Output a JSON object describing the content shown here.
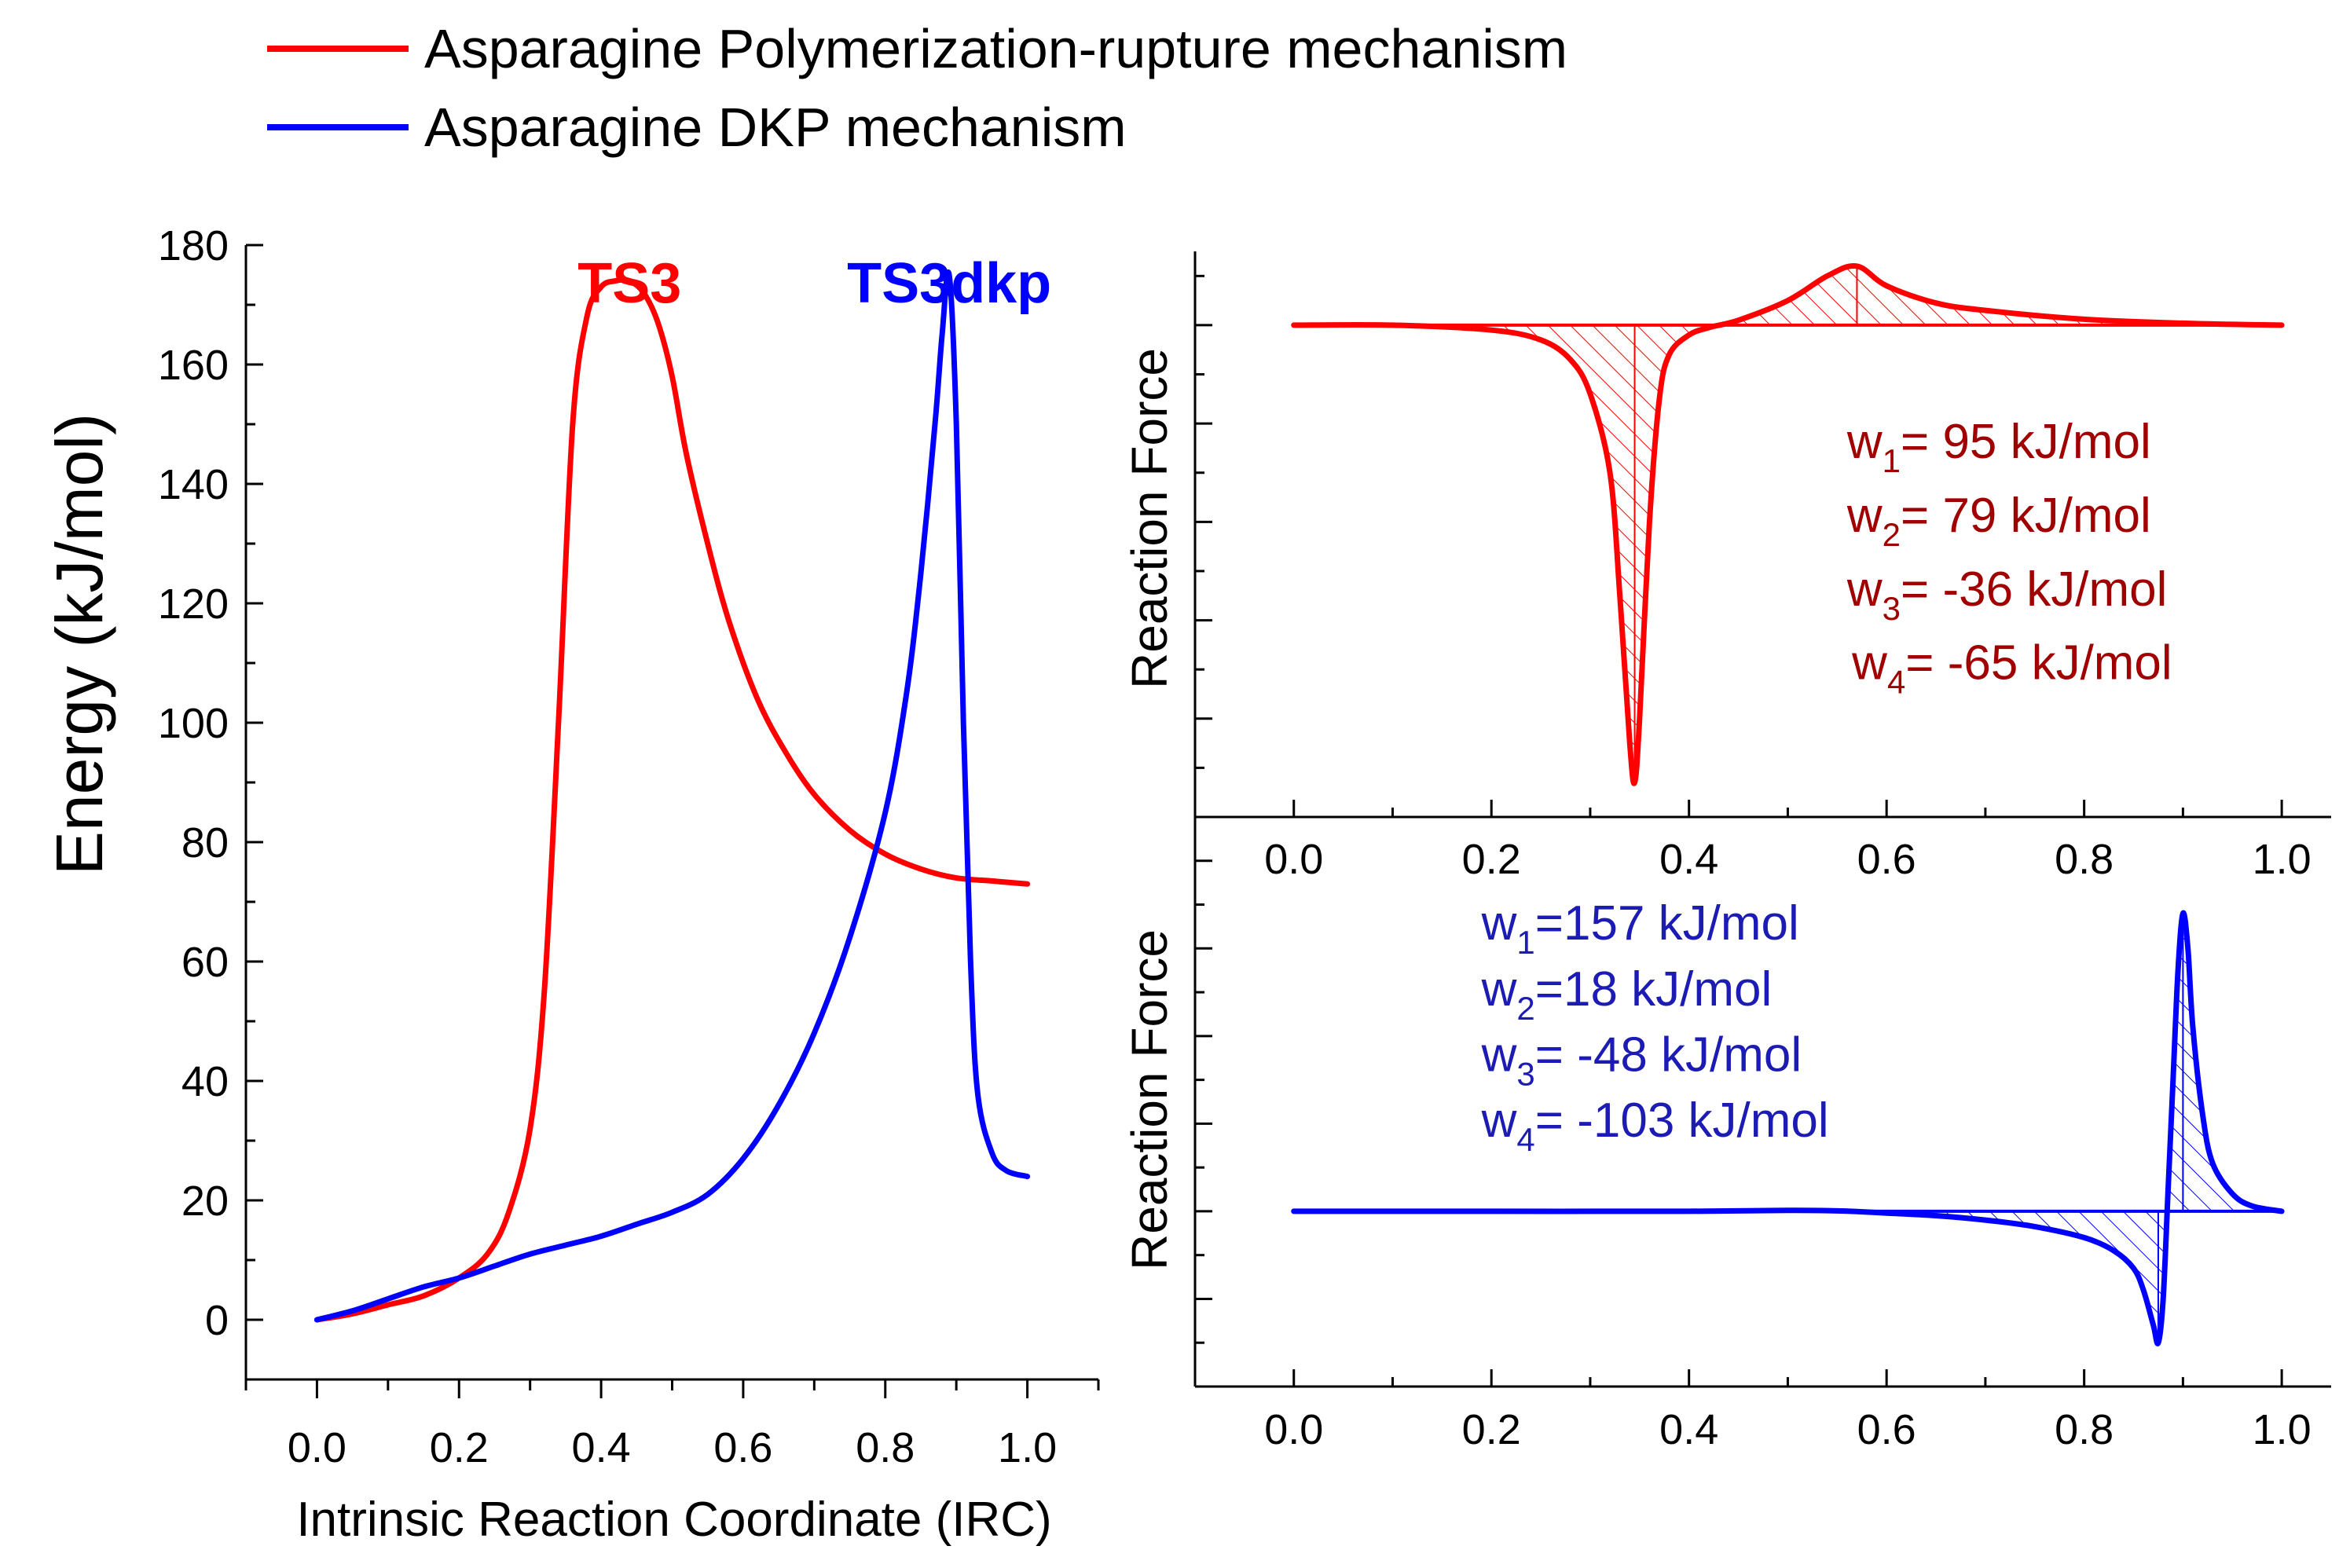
{
  "legend": {
    "placement": "top-left",
    "entries": [
      {
        "label": "Asparagine Polymerization-rupture mechanism",
        "color": "#ff0000"
      },
      {
        "label": "Asparagine DKP mechanism",
        "color": "#0000ff"
      }
    ]
  },
  "colors": {
    "red": "#ff0000",
    "blue": "#0000ff",
    "dark_red": "#a00000",
    "dark_blue": "#1c1cb4"
  },
  "chart_data": [
    {
      "id": "energy",
      "type": "line",
      "xlabel": "Intrinsic Reaction Coordinate (IRC)",
      "ylabel": "Energy (kJ/mol)",
      "xlim": [
        -0.1,
        1.1
      ],
      "ylim": [
        -10,
        180
      ],
      "xticks": [
        "0.0",
        "0.2",
        "0.4",
        "0.6",
        "0.8",
        "1.0"
      ],
      "yticks": [
        "0",
        "20",
        "40",
        "60",
        "80",
        "100",
        "120",
        "140",
        "160",
        "180"
      ],
      "annotations": [
        {
          "text": "TS3",
          "x": 0.44,
          "y": 177,
          "color": "#ff0000"
        },
        {
          "text": "TS3dkp",
          "x": 0.89,
          "y": 177,
          "color": "#0000ff"
        }
      ],
      "series": [
        {
          "name": "Asparagine Polymerization-rupture mechanism",
          "color": "#ff0000",
          "x": [
            0.0,
            0.05,
            0.1,
            0.15,
            0.2,
            0.24,
            0.27,
            0.3,
            0.32,
            0.34,
            0.36,
            0.38,
            0.4,
            0.42,
            0.44,
            0.46,
            0.48,
            0.5,
            0.52,
            0.55,
            0.58,
            0.62,
            0.66,
            0.7,
            0.75,
            0.8,
            0.85,
            0.9,
            0.95,
            1.0
          ],
          "y": [
            0,
            1,
            2.5,
            4,
            7,
            11,
            18,
            32,
            55,
            100,
            150,
            168,
            173,
            174,
            174,
            172,
            167,
            158,
            145,
            130,
            117,
            104,
            95,
            88,
            82,
            78,
            75.5,
            74,
            73.5,
            73
          ]
        },
        {
          "name": "Asparagine DKP mechanism",
          "color": "#0000ff",
          "x": [
            0.0,
            0.05,
            0.1,
            0.15,
            0.2,
            0.25,
            0.3,
            0.35,
            0.4,
            0.45,
            0.5,
            0.55,
            0.6,
            0.65,
            0.7,
            0.75,
            0.8,
            0.83,
            0.85,
            0.87,
            0.88,
            0.89,
            0.9,
            0.91,
            0.92,
            0.93,
            0.95,
            0.97,
            1.0
          ],
          "y": [
            0,
            1.5,
            3.5,
            5.5,
            7,
            9,
            11,
            12.5,
            14,
            16,
            18,
            21,
            27,
            36,
            48,
            64,
            85,
            105,
            125,
            150,
            165,
            175,
            150,
            100,
            60,
            38,
            28,
            25,
            24
          ]
        }
      ]
    },
    {
      "id": "force-red",
      "type": "area",
      "xlabel": "",
      "ylabel": "Reaction Force",
      "xlim": [
        -0.1,
        1.05
      ],
      "ylim": [
        -1.0,
        0.15
      ],
      "xticks": [
        "0.0",
        "0.2",
        "0.4",
        "0.6",
        "0.8",
        "1.0"
      ],
      "annotations": [
        {
          "text": "w",
          "sub": "1",
          "rest": "= 95 kJ/mol",
          "x": 0.56,
          "y": -0.27,
          "color": "#a00000"
        },
        {
          "text": "w",
          "sub": "2",
          "rest": "= 79 kJ/mol",
          "x": 0.56,
          "y": -0.42,
          "color": "#a00000"
        },
        {
          "text": "w",
          "sub": "3",
          "rest": "= -36 kJ/mol",
          "x": 0.56,
          "y": -0.57,
          "color": "#a00000"
        },
        {
          "text": "w",
          "sub": "4",
          "rest": "= -65 kJ/mol",
          "x": 0.565,
          "y": -0.72,
          "color": "#a00000"
        }
      ],
      "series": [
        {
          "color": "#ff0000",
          "x": [
            0.0,
            0.1,
            0.2,
            0.25,
            0.28,
            0.3,
            0.32,
            0.33,
            0.34,
            0.345,
            0.35,
            0.36,
            0.37,
            0.38,
            0.4,
            0.42,
            0.45,
            0.5,
            0.54,
            0.57,
            0.6,
            0.65,
            0.7,
            0.8,
            0.9,
            1.0
          ],
          "y": [
            0,
            0,
            -0.01,
            -0.03,
            -0.07,
            -0.14,
            -0.3,
            -0.55,
            -0.85,
            -0.93,
            -0.8,
            -0.4,
            -0.15,
            -0.06,
            -0.02,
            -0.005,
            0.01,
            0.05,
            0.1,
            0.12,
            0.08,
            0.045,
            0.03,
            0.012,
            0.004,
            0
          ]
        }
      ]
    },
    {
      "id": "force-blue",
      "type": "area",
      "xlabel": "",
      "ylabel": "Reaction Force",
      "xlim": [
        -0.1,
        1.05
      ],
      "ylim": [
        -0.4,
        0.9
      ],
      "xticks": [
        "0.0",
        "0.2",
        "0.4",
        "0.6",
        "0.8",
        "1.0"
      ],
      "annotations": [
        {
          "text": "w",
          "sub": "1",
          "rest": "=157 kJ/mol",
          "x": 0.19,
          "y": 0.62,
          "color": "#1c1cb4"
        },
        {
          "text": "w",
          "sub": "2",
          "rest": "=18 kJ/mol",
          "x": 0.19,
          "y": 0.47,
          "color": "#1c1cb4"
        },
        {
          "text": "w",
          "sub": "3",
          "rest": "= -48 kJ/mol",
          "x": 0.19,
          "y": 0.32,
          "color": "#1c1cb4"
        },
        {
          "text": "w",
          "sub": "4",
          "rest": "= -103 kJ/mol",
          "x": 0.19,
          "y": 0.17,
          "color": "#1c1cb4"
        }
      ],
      "series": [
        {
          "color": "#0000ff",
          "x": [
            0.0,
            0.2,
            0.4,
            0.5,
            0.55,
            0.6,
            0.65,
            0.7,
            0.75,
            0.8,
            0.83,
            0.85,
            0.86,
            0.87,
            0.875,
            0.88,
            0.885,
            0.89,
            0.895,
            0.9,
            0.905,
            0.91,
            0.92,
            0.93,
            0.95,
            0.97,
            1.0
          ],
          "y": [
            0,
            0,
            0,
            0.002,
            0.001,
            -0.004,
            -0.01,
            -0.02,
            -0.035,
            -0.06,
            -0.09,
            -0.13,
            -0.18,
            -0.26,
            -0.3,
            -0.2,
            0.05,
            0.3,
            0.55,
            0.68,
            0.6,
            0.42,
            0.22,
            0.11,
            0.04,
            0.012,
            0
          ]
        }
      ]
    }
  ]
}
